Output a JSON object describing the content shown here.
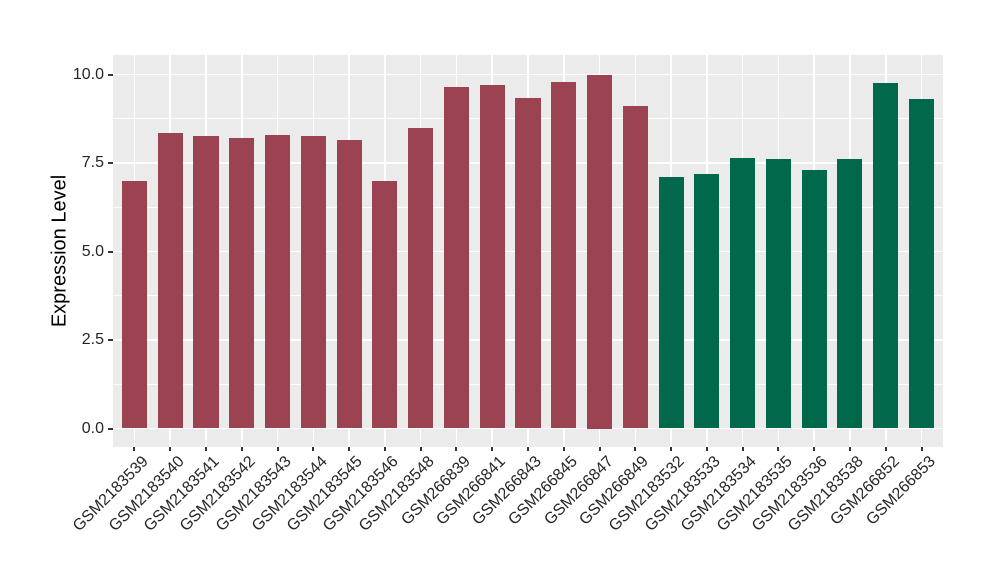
{
  "chart_data": {
    "type": "bar",
    "title": "",
    "xlabel": "",
    "ylabel": "Expression Level",
    "ylim": [
      0,
      10.5
    ],
    "yticks": [
      "0.0",
      "2.5",
      "5.0",
      "7.5",
      "10.0"
    ],
    "ytick_values": [
      0,
      2.5,
      5,
      7.5,
      10
    ],
    "ytick_minor_values": [
      1.25,
      3.75,
      6.25,
      8.75
    ],
    "grid": "white major and minor horizontal lines plus white vertical lines at each bar center on gray panel",
    "legend_position": "none",
    "categories": [
      "GSM2183539",
      "GSM2183540",
      "GSM2183541",
      "GSM2183542",
      "GSM2183543",
      "GSM2183544",
      "GSM2183545",
      "GSM2183546",
      "GSM2183548",
      "GSM266839",
      "GSM266841",
      "GSM266843",
      "GSM266845",
      "GSM266847",
      "GSM266849",
      "GSM2183532",
      "GSM2183533",
      "GSM2183534",
      "GSM2183535",
      "GSM2183536",
      "GSM2183538",
      "GSM266852",
      "GSM266853"
    ],
    "values": [
      7.0,
      8.35,
      8.25,
      8.2,
      8.3,
      8.25,
      8.15,
      7.0,
      8.5,
      9.65,
      9.7,
      9.35,
      9.8,
      10.0,
      9.1,
      7.1,
      7.2,
      7.65,
      7.6,
      7.3,
      7.6,
      9.75,
      9.3
    ],
    "bar_groups": [
      "g1",
      "g1",
      "g1",
      "g1",
      "g1",
      "g1",
      "g1",
      "g1",
      "g1",
      "g1",
      "g1",
      "g1",
      "g1",
      "g1",
      "g1",
      "g2",
      "g2",
      "g2",
      "g2",
      "g2",
      "g2",
      "g2",
      "g2"
    ],
    "group_colors": {
      "g1": "#9B4350",
      "g2": "#00684B"
    }
  },
  "style": {
    "background": "#FFFFFF",
    "panel_bg": "#EBEBEB",
    "grid_color": "#FFFFFF",
    "tick_mark_color": "#333333",
    "axis_text_color": "#262626",
    "axis_title_color": "#000000"
  }
}
